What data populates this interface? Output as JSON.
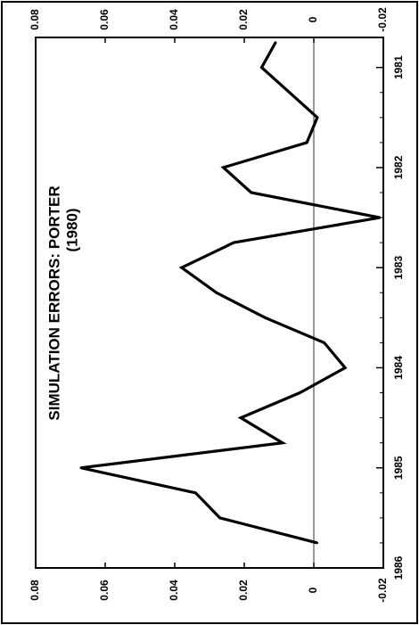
{
  "chart_data": {
    "type": "line",
    "orientation": "rotated-90-clockwise",
    "title": "SIMULATION ERRORS: PORTER",
    "subtitle": "(1980)",
    "xlabel": "",
    "ylabel": "",
    "x_tick_labels": [
      "1981",
      "1982",
      "1983",
      "1984",
      "1985",
      "1986"
    ],
    "y_tick_labels": [
      "0.08",
      "0.06",
      "0.04",
      "0.02",
      "0",
      "-0.02"
    ],
    "ylim": [
      -0.02,
      0.08
    ],
    "grid": false,
    "zero_line": true,
    "series": [
      {
        "x": [
          1980.75,
          1981.0,
          1981.25,
          1981.5,
          1981.75,
          1982.0,
          1982.25,
          1982.5,
          1982.75,
          1983.0,
          1983.25,
          1983.5,
          1983.75,
          1984.0,
          1984.25,
          1984.5,
          1984.75,
          1985.0,
          1985.25,
          1985.5,
          1985.75
        ],
        "values": [
          0.011,
          0.015,
          0.007,
          -0.001,
          0.002,
          0.026,
          0.018,
          -0.019,
          0.023,
          0.038,
          0.028,
          0.014,
          -0.003,
          -0.009,
          0.004,
          0.021,
          0.009,
          0.067,
          0.034,
          0.027,
          -0.001
        ]
      }
    ]
  }
}
